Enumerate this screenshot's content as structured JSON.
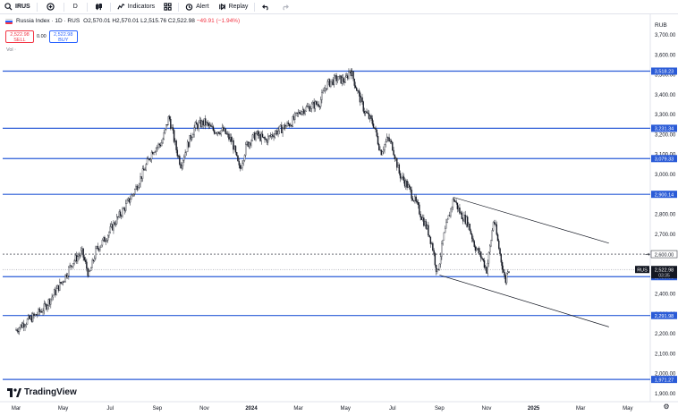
{
  "toolbar": {
    "symbol": "IRUS",
    "interval": "D",
    "indicators_label": "Indicators",
    "alert_label": "Alert",
    "replay_label": "Replay"
  },
  "legend": {
    "title": "Russia Index · 1D · RUS",
    "open": "O2,570.01",
    "high": "H2,570.01",
    "low": "L2,515.76",
    "close": "C2,522.98",
    "change": "−49.91 (−1.94%)"
  },
  "trade": {
    "sell_price": "2,522.98",
    "sell_label": "SELL",
    "spread": "0.00",
    "buy_price": "2,522.98",
    "buy_label": "BUY"
  },
  "volume_label": "Vol",
  "currency": "RUB",
  "brand": "TradingView",
  "colors": {
    "hline": "#2a5bd7",
    "candle": "#131722",
    "current_price_bg": "#131722",
    "symbol_tag_bg": "#131722"
  },
  "chart_data": {
    "type": "candlestick",
    "y_axis": {
      "min": 1900,
      "max": 3700,
      "ticks": [
        "3,700.00",
        "3,600.00",
        "3,500.00",
        "3,400.00",
        "3,300.00",
        "3,200.00",
        "3,100.00",
        "3,000.00",
        "2,900.00",
        "2,800.00",
        "2,700.00",
        "2,600.00",
        "2,500.00",
        "2,400.00",
        "2,300.00",
        "2,200.00",
        "2,100.00",
        "2,000.00",
        "1,900.00"
      ]
    },
    "x_axis": {
      "ticks": [
        "Mar",
        "May",
        "Jul",
        "Sep",
        "Nov",
        "2024",
        "Mar",
        "May",
        "Jul",
        "Sep",
        "Nov",
        "2025",
        "Mar",
        "May"
      ]
    },
    "horizontal_levels": [
      {
        "value": 3518.23,
        "label": "3,518.23"
      },
      {
        "value": 3231.34,
        "label": "3,231.34"
      },
      {
        "value": 3079.33,
        "label": "3,079.33"
      },
      {
        "value": 2900.14,
        "label": "2,900.14"
      },
      {
        "value": 2486.98,
        "label": "2,486.98"
      },
      {
        "value": 2291.98,
        "label": "2,291.98"
      },
      {
        "value": 1971.27,
        "label": "1,971.27"
      }
    ],
    "dashed_level": {
      "value": 2600,
      "label": "2,600.00"
    },
    "current_price": {
      "value": 2522.98,
      "label": "2,522.98",
      "sub_label": "03:35",
      "symbol_tag": "RUS"
    },
    "channel": {
      "upper": {
        "from_month": 18.6,
        "from_value": 2885,
        "to_month": 25.2,
        "to_value": 2655
      },
      "lower": {
        "from_month": 18.0,
        "from_value": 2495,
        "to_month": 25.2,
        "to_value": 2235
      }
    },
    "close_path": [
      [
        0,
        2220
      ],
      [
        0.4,
        2260
      ],
      [
        0.8,
        2290
      ],
      [
        1.2,
        2330
      ],
      [
        1.6,
        2400
      ],
      [
        2.0,
        2470
      ],
      [
        2.4,
        2560
      ],
      [
        2.8,
        2610
      ],
      [
        3.1,
        2490
      ],
      [
        3.4,
        2620
      ],
      [
        3.8,
        2680
      ],
      [
        4.2,
        2760
      ],
      [
        4.6,
        2830
      ],
      [
        5.0,
        2910
      ],
      [
        5.4,
        3010
      ],
      [
        5.8,
        3120
      ],
      [
        6.2,
        3160
      ],
      [
        6.5,
        3290
      ],
      [
        6.8,
        3130
      ],
      [
        7.0,
        3050
      ],
      [
        7.3,
        3150
      ],
      [
        7.6,
        3240
      ],
      [
        8.0,
        3260
      ],
      [
        8.4,
        3220
      ],
      [
        8.8,
        3220
      ],
      [
        9.2,
        3160
      ],
      [
        9.5,
        3020
      ],
      [
        9.8,
        3150
      ],
      [
        10.2,
        3200
      ],
      [
        10.6,
        3170
      ],
      [
        11.0,
        3210
      ],
      [
        11.3,
        3230
      ],
      [
        11.7,
        3260
      ],
      [
        12.1,
        3320
      ],
      [
        12.5,
        3340
      ],
      [
        12.9,
        3360
      ],
      [
        13.2,
        3450
      ],
      [
        13.6,
        3480
      ],
      [
        14.0,
        3470
      ],
      [
        14.2,
        3530
      ],
      [
        14.5,
        3420
      ],
      [
        14.8,
        3320
      ],
      [
        15.2,
        3250
      ],
      [
        15.5,
        3110
      ],
      [
        15.8,
        3180
      ],
      [
        16.0,
        3140
      ],
      [
        16.3,
        3000
      ],
      [
        16.6,
        2950
      ],
      [
        16.9,
        2880
      ],
      [
        17.2,
        2800
      ],
      [
        17.5,
        2720
      ],
      [
        17.7,
        2640
      ],
      [
        17.9,
        2500
      ],
      [
        18.2,
        2700
      ],
      [
        18.6,
        2880
      ],
      [
        18.9,
        2800
      ],
      [
        19.2,
        2760
      ],
      [
        19.5,
        2640
      ],
      [
        19.8,
        2580
      ],
      [
        20.0,
        2520
      ],
      [
        20.2,
        2680
      ],
      [
        20.3,
        2780
      ],
      [
        20.6,
        2580
      ],
      [
        20.8,
        2460
      ],
      [
        20.9,
        2530
      ],
      [
        21.0,
        2522.98
      ]
    ],
    "notes": "x values are months since Mar 2023 (Mar 2023 = 0); y values are index values in RUB, approximated from the daily candlesticks."
  }
}
